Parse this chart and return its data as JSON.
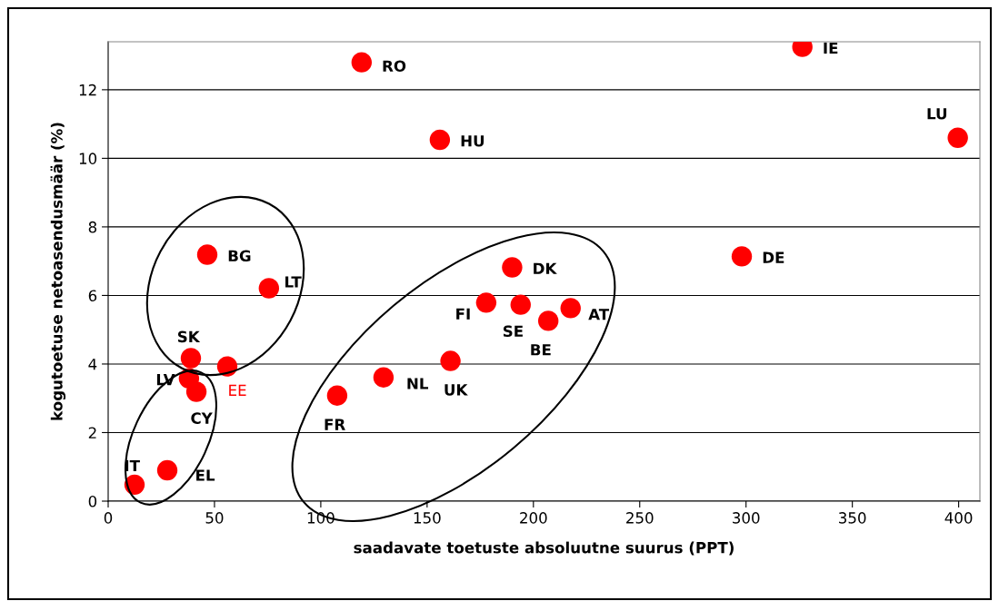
{
  "chart_data": {
    "type": "scatter",
    "xlabel": "saadavate toetuste absoluutne suurus (PPT)",
    "ylabel": "kogutoetuse netoasendusmäär (%)",
    "xlim": [
      0,
      410
    ],
    "xticks": [
      0,
      50,
      100,
      150,
      200,
      250,
      300,
      350,
      400
    ],
    "ylim": [
      0,
      13.4
    ],
    "yticks": [
      0,
      2,
      4,
      6,
      8,
      10,
      12
    ],
    "grid": "y",
    "marker": "circle",
    "legend": false,
    "series": [
      {
        "color": "#ff0000",
        "x": [
          119.2,
          326.5,
          156,
          399.6,
          46.6,
          75.6,
          298,
          190,
          177.8,
          194,
          217.5,
          207,
          161,
          129.5,
          107.7,
          38.9,
          38,
          41.5,
          27.8,
          12.4
        ],
        "values": [
          12.8,
          13.25,
          10.54,
          10.6,
          7.19,
          6.21,
          7.14,
          6.82,
          5.79,
          5.73,
          5.63,
          5.26,
          4.09,
          3.61,
          3.08,
          4.17,
          3.58,
          3.19,
          0.9,
          0.48
        ],
        "value_labels": [
          "RO",
          "IE",
          "HU",
          "LU",
          "BG",
          "LT",
          "DE",
          "DK",
          "FI",
          "SE",
          "AT",
          "BE",
          "UK",
          "NL",
          "FR",
          "SK",
          "LV",
          "CY",
          "EL",
          "IT"
        ]
      },
      {
        "name": "EE",
        "color": "#ff0000",
        "x": [
          56
        ],
        "values": [
          3.93
        ]
      }
    ]
  }
}
